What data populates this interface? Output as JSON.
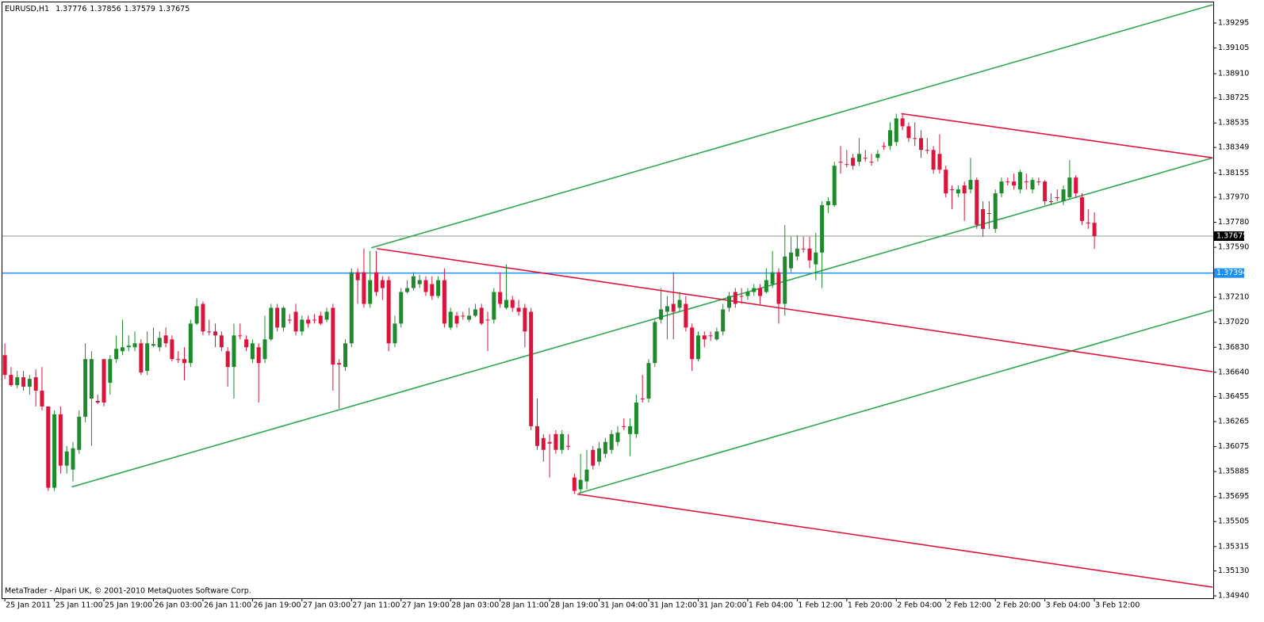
{
  "chart_data": {
    "type": "candlestick",
    "symbol": "EURUSD,H1",
    "open": [
      1.3677,
      1.3662,
      1.36542,
      1.36602,
      1.3653,
      1.36602,
      1.365,
      1.3638,
      1.35762,
      1.3632,
      1.3593,
      1.359,
      1.3605,
      1.36302,
      1.3644,
      1.36422,
      1.3674,
      1.3656,
      1.3674,
      1.368,
      1.3683,
      1.3683,
      1.3686,
      1.3665,
      1.36842,
      1.3683,
      1.3692,
      1.3689,
      1.3674,
      1.3674,
      1.3671,
      1.3701,
      1.3716,
      1.3695,
      1.3695,
      1.3692,
      1.368,
      1.3668,
      1.3692,
      1.3689,
      1.3674,
      1.3683,
      1.3674,
      1.3689,
      1.3713,
      1.3698,
      1.3704,
      1.371,
      1.3695,
      1.3704,
      1.3704,
      1.3707,
      1.3704,
      1.3713,
      1.3671,
      1.3668,
      1.3686,
      1.374,
      1.374,
      1.3716,
      1.374,
      1.3734,
      1.3734,
      1.3686,
      1.3701,
      1.3725,
      1.3728,
      1.3731,
      1.3734,
      1.3731,
      1.3722,
      1.3734,
      1.3698,
      1.3707,
      1.3707,
      1.3704,
      1.3707,
      1.3713,
      1.3704,
      1.3704,
      1.3725,
      1.3713,
      1.3719,
      1.3713,
      1.3713,
      1.371,
      1.3623,
      1.3614,
      1.3611,
      1.3617,
      1.3605,
      1.3608,
      1.3584,
      1.3575,
      1.3581,
      1.3605,
      1.3596,
      1.3602,
      1.3605,
      1.3611,
      1.3623,
      1.3617,
      1.3617,
      1.3644,
      1.3644,
      1.3671,
      1.3704,
      1.371,
      1.3716,
      1.3713,
      1.3716,
      1.3698,
      1.3674,
      1.3692,
      1.3692,
      1.3689,
      1.3695,
      1.3713,
      1.3725,
      1.3722,
      1.3722,
      1.3725,
      1.3728,
      1.3725,
      1.3731,
      1.374,
      1.3716,
      1.3743,
      1.3752,
      1.3758,
      1.3758,
      1.3746,
      1.3755,
      1.3791,
      1.3791,
      1.3824,
      1.38222,
      1.3827,
      1.3824,
      1.3827,
      1.3824,
      1.3827,
      1.3836,
      1.3836,
      1.3839,
      1.3857,
      1.3851,
      1.3842,
      1.3842,
      1.3833,
      1.3833,
      1.383,
      1.3818,
      1.3803,
      1.38,
      1.3806,
      1.3803,
      1.38102,
      1.3788,
      1.3785,
      1.3773,
      1.38,
      1.3809,
      1.3809,
      1.3803,
      1.3809,
      1.3803,
      1.3809,
      1.3809,
      1.3794,
      1.3797,
      1.3794,
      1.3797,
      1.3812,
      1.3797,
      1.37778,
      1.37776
    ],
    "high": [
      1.3686,
      1.3668,
      1.3665,
      1.3665,
      1.3662,
      1.36662,
      1.3668,
      1.3638,
      1.3635,
      1.3638,
      1.3608,
      1.3611,
      1.3635,
      1.3686,
      1.368,
      1.3647,
      1.3674,
      1.3677,
      1.3692,
      1.3704,
      1.3692,
      1.3695,
      1.3689,
      1.3695,
      1.3698,
      1.3695,
      1.3698,
      1.3692,
      1.368,
      1.3683,
      1.3704,
      1.37202,
      1.37178,
      1.3704,
      1.3701,
      1.3695,
      1.3683,
      1.3701,
      1.3701,
      1.3692,
      1.3689,
      1.3686,
      1.3707,
      1.3716,
      1.3716,
      1.37142,
      1.37082,
      1.3716,
      1.3707,
      1.3707,
      1.37082,
      1.371,
      1.3713,
      1.3716,
      1.3674,
      1.3689,
      1.3743,
      1.3743,
      1.3758,
      1.37562,
      1.37562,
      1.3737,
      1.3737,
      1.3707,
      1.3728,
      1.3734,
      1.374,
      1.37382,
      1.3737,
      1.3737,
      1.3737,
      1.3743,
      1.3713,
      1.371,
      1.371,
      1.3713,
      1.3716,
      1.3716,
      1.371,
      1.3728,
      1.374,
      1.3746,
      1.3722,
      1.3719,
      1.3716,
      1.3713,
      1.3644,
      1.3617,
      1.3617,
      1.362,
      1.362,
      1.3617,
      1.3587,
      1.3602,
      1.3605,
      1.3608,
      1.3611,
      1.3614,
      1.362,
      1.3623,
      1.3629,
      1.3629,
      1.3647,
      1.3662,
      1.3674,
      1.3704,
      1.3728,
      1.3722,
      1.374,
      1.3725,
      1.3722,
      1.3701,
      1.3695,
      1.3695,
      1.3695,
      1.3698,
      1.3716,
      1.3725,
      1.3728,
      1.3728,
      1.3728,
      1.3731,
      1.3731,
      1.3743,
      1.37562,
      1.3743,
      1.3776,
      1.3767,
      1.37682,
      1.3767,
      1.3767,
      1.377,
      1.3794,
      1.3797,
      1.3824,
      1.3836,
      1.3833,
      1.383,
      1.3842,
      1.3833,
      1.383,
      1.3833,
      1.3839,
      1.3854,
      1.38606,
      1.386,
      1.3854,
      1.3854,
      1.3848,
      1.3842,
      1.3836,
      1.3845,
      1.3821,
      1.3806,
      1.3806,
      1.3809,
      1.3827,
      1.3812,
      1.3794,
      1.3794,
      1.3803,
      1.3812,
      1.3812,
      1.3815,
      1.3818,
      1.3815,
      1.3812,
      1.3812,
      1.38102,
      1.38,
      1.3803,
      1.3806,
      1.38252,
      1.38138,
      1.38,
      1.3788,
      1.37856
    ],
    "low": [
      1.3659,
      1.3653,
      1.36518,
      1.365,
      1.3647,
      1.3638,
      1.3635,
      1.35738,
      1.35738,
      1.3587,
      1.3587,
      1.3581,
      1.3602,
      1.3626,
      1.3608,
      1.36398,
      1.3638,
      1.3647,
      1.3671,
      1.3677,
      1.368,
      1.368,
      1.3662,
      1.3662,
      1.3683,
      1.368,
      1.3683,
      1.36722,
      1.3671,
      1.36578,
      1.3668,
      1.36998,
      1.3692,
      1.3692,
      1.3683,
      1.368,
      1.3653,
      1.3644,
      1.3689,
      1.368,
      1.3671,
      1.3641,
      1.3671,
      1.36878,
      1.3695,
      1.3695,
      1.3701,
      1.3692,
      1.3692,
      1.3698,
      1.3701,
      1.36998,
      1.37022,
      1.365,
      1.36362,
      1.3665,
      1.3683,
      1.3716,
      1.3713,
      1.3713,
      1.3722,
      1.3719,
      1.368,
      1.3683,
      1.3698,
      1.37238,
      1.37262,
      1.3728,
      1.3722,
      1.3719,
      1.37202,
      1.3698,
      1.36962,
      1.3698,
      1.3704,
      1.37022,
      1.37058,
      1.36998,
      1.368,
      1.3701,
      1.3713,
      1.37118,
      1.371,
      1.3707,
      1.3683,
      1.362,
      1.3605,
      1.3596,
      1.3584,
      1.3602,
      1.3602,
      1.3605,
      1.35714,
      1.35726,
      1.3575,
      1.359,
      1.3593,
      1.3599,
      1.3602,
      1.3608,
      1.362,
      1.36002,
      1.3614,
      1.3641,
      1.3641,
      1.3668,
      1.3701,
      1.3689,
      1.3689,
      1.371,
      1.3695,
      1.3665,
      1.36722,
      1.3683,
      1.36878,
      1.36878,
      1.3692,
      1.371,
      1.3713,
      1.3716,
      1.3719,
      1.3722,
      1.3716,
      1.37238,
      1.3728,
      1.3701,
      1.3707,
      1.374,
      1.3749,
      1.3755,
      1.3743,
      1.3734,
      1.3728,
      1.3785,
      1.37898,
      1.3815,
      1.38198,
      1.3818,
      1.3821,
      1.3824,
      1.3821,
      1.3824,
      1.3833,
      1.3833,
      1.3836,
      1.3848,
      1.3839,
      1.3836,
      1.3827,
      1.383,
      1.3815,
      1.3815,
      1.3797,
      1.3788,
      1.3797,
      1.3779,
      1.38,
      1.3773,
      1.3767,
      1.3773,
      1.377,
      1.3797,
      1.3806,
      1.3803,
      1.38,
      1.3803,
      1.38,
      1.3806,
      1.3791,
      1.3791,
      1.3794,
      1.3791,
      1.37958,
      1.3797,
      1.3776,
      1.3773,
      1.37579
    ],
    "close": [
      1.3662,
      1.36542,
      1.36602,
      1.3653,
      1.3659,
      1.365,
      1.3638,
      1.35762,
      1.3632,
      1.3593,
      1.36038,
      1.36062,
      1.36302,
      1.3674,
      1.3674,
      1.3641,
      1.3641,
      1.3674,
      1.36818,
      1.3683,
      1.36842,
      1.3686,
      1.36638,
      1.3686,
      1.36854,
      1.36902,
      1.3686,
      1.3674,
      1.36734,
      1.3671,
      1.3701,
      1.37142,
      1.3695,
      1.36944,
      1.3692,
      1.3683,
      1.3668,
      1.3692,
      1.36914,
      1.3683,
      1.3686,
      1.3671,
      1.3689,
      1.3713,
      1.3698,
      1.3713,
      1.37034,
      1.3695,
      1.3704,
      1.3701,
      1.37034,
      1.3701,
      1.371,
      1.36698,
      1.36698,
      1.3686,
      1.374,
      1.3734,
      1.3716,
      1.3734,
      1.3725,
      1.3728,
      1.3686,
      1.3701,
      1.3725,
      1.3728,
      1.3737,
      1.3734,
      1.3725,
      1.3722,
      1.3734,
      1.3701,
      1.371,
      1.3701,
      1.37064,
      1.3707,
      1.37118,
      1.3701,
      1.37034,
      1.3725,
      1.3716,
      1.3719,
      1.3713,
      1.371,
      1.3695,
      1.3623,
      1.3608,
      1.3605,
      1.36098,
      1.3605,
      1.3617,
      1.36074,
      1.35738,
      1.35822,
      1.359,
      1.3593,
      1.36062,
      1.3611,
      1.3617,
      1.36182,
      1.36224,
      1.3623,
      1.3641,
      1.36434,
      1.3671,
      1.37022,
      1.37118,
      1.37142,
      1.371,
      1.3719,
      1.3698,
      1.3674,
      1.3692,
      1.3689,
      1.36914,
      1.3695,
      1.37118,
      1.3722,
      1.3716,
      1.37214,
      1.3725,
      1.3728,
      1.3722,
      1.3734,
      1.374,
      1.3716,
      1.3752,
      1.3755,
      1.3758,
      1.37574,
      1.3749,
      1.3755,
      1.3791,
      1.3794,
      1.3821,
      1.38234,
      1.38216,
      1.3821,
      1.383,
      1.38264,
      1.38234,
      1.383,
      1.38354,
      1.3848,
      1.3857,
      1.3851,
      1.3842,
      1.38414,
      1.3833,
      1.38324,
      1.3818,
      1.3818,
      1.38,
      1.38024,
      1.3803,
      1.38,
      1.38102,
      1.3776,
      1.3773,
      1.37844,
      1.38,
      1.3809,
      1.38084,
      1.3806,
      1.38162,
      1.38084,
      1.38102,
      1.38084,
      1.3794,
      1.37934,
      1.37964,
      1.3803,
      1.3812,
      1.38,
      1.3779,
      1.37772,
      1.37675
    ],
    "up_color": "#1f8a2c",
    "down_color": "#dc143c",
    "xlim": [
      -0.4,
      195.2
    ],
    "xticks": [
      {
        "value": 0,
        "label": "25 Jan 2011"
      },
      {
        "value": 8,
        "label": "25 Jan 11:00"
      },
      {
        "value": 16,
        "label": "25 Jan 19:00"
      },
      {
        "value": 24,
        "label": "26 Jan 03:00"
      },
      {
        "value": 32,
        "label": "26 Jan 11:00"
      },
      {
        "value": 40,
        "label": "26 Jan 19:00"
      },
      {
        "value": 48,
        "label": "27 Jan 03:00"
      },
      {
        "value": 56,
        "label": "27 Jan 11:00"
      },
      {
        "value": 64,
        "label": "27 Jan 19:00"
      },
      {
        "value": 72,
        "label": "28 Jan 03:00"
      },
      {
        "value": 80,
        "label": "28 Jan 11:00"
      },
      {
        "value": 88,
        "label": "28 Jan 19:00"
      },
      {
        "value": 96,
        "label": "31 Jan 04:00"
      },
      {
        "value": 104,
        "label": "31 Jan 12:00"
      },
      {
        "value": 112,
        "label": "31 Jan 20:00"
      },
      {
        "value": 120,
        "label": "1 Feb 04:00"
      },
      {
        "value": 128,
        "label": "1 Feb 12:00"
      },
      {
        "value": 136,
        "label": "1 Feb 20:00"
      },
      {
        "value": 144,
        "label": "2 Feb 04:00"
      },
      {
        "value": 152,
        "label": "2 Feb 12:00"
      },
      {
        "value": 160,
        "label": "2 Feb 20:00"
      },
      {
        "value": 168,
        "label": "3 Feb 04:00"
      },
      {
        "value": 176,
        "label": "3 Feb 12:00"
      }
    ],
    "ylim": [
      1.34922,
      1.39452
    ],
    "yticks": [
      1.39295,
      1.39105,
      {
        "value": 1.3891,
        "label": "1.38910"
      },
      1.38725,
      1.38535,
      1.38349,
      1.38155,
      {
        "value": 1.3797,
        "label": "1.37970"
      },
      {
        "value": 1.3778,
        "label": "1.37780"
      },
      {
        "value": 1.3759,
        "label": "1.37590"
      },
      {
        "value": 1.3721,
        "label": "1.37210"
      },
      {
        "value": 1.3702,
        "label": "1.37020"
      },
      {
        "value": 1.3683,
        "label": "1.36830"
      },
      {
        "value": 1.3664,
        "label": "1.36640"
      },
      1.36455,
      1.36265,
      1.36075,
      1.35885,
      1.35695,
      1.35505,
      1.35315,
      {
        "value": 1.3513,
        "label": "1.35130"
      },
      {
        "value": 1.3494,
        "label": "1.34940"
      }
    ],
    "lines": [
      {
        "x": [
          59.2,
          195.1
        ],
        "y": [
          1.37586,
          1.39434
        ],
        "color": "#2fa84f"
      },
      {
        "x": [
          10.8,
          195.1
        ],
        "y": [
          1.35768,
          1.3827
        ],
        "color": "#2fa84f"
      },
      {
        "x": [
          92.7,
          195.1
        ],
        "y": [
          1.3572,
          1.37112
        ],
        "color": "#2fa84f"
      },
      {
        "x": [
          60.1,
          195.1
        ],
        "y": [
          1.3758,
          1.36644
        ],
        "color": "#e0143c"
      },
      {
        "x": [
          144.8,
          195.1
        ],
        "y": [
          1.38606,
          1.3827
        ],
        "color": "#e0143c"
      },
      {
        "x": [
          92.5,
          195.1
        ],
        "y": [
          1.35714,
          1.35006
        ],
        "color": "#e0143c"
      }
    ],
    "price_lines": [
      {
        "value": 1.37394,
        "color": "#1e90ff"
      },
      {
        "value": 1.37675,
        "color": "#000000"
      }
    ]
  },
  "footer": "MetaTrader - Alpari UK, © 2001-2010 MetaQuotes Software Corp."
}
